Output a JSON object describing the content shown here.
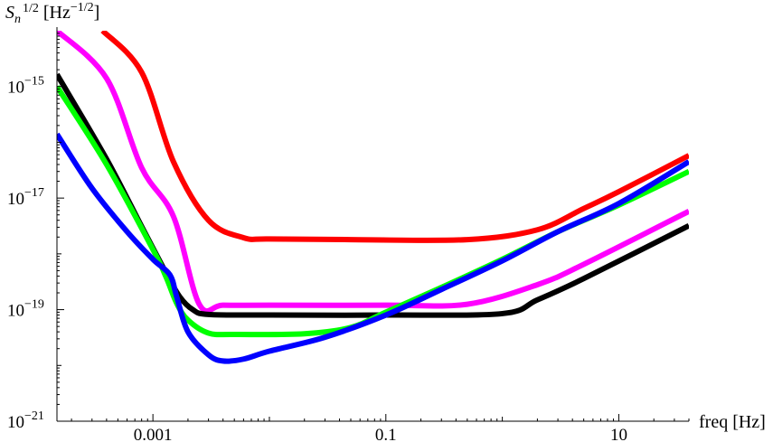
{
  "chart_data": {
    "type": "line",
    "x_scale": "log",
    "y_scale": "log",
    "xlim": [
      0.00015,
      40
    ],
    "ylim": [
      1e-21,
      1e-14
    ],
    "xlabel": "freq [Hz]",
    "ylabel": {
      "base": "S",
      "sub": "n",
      "sup": "1/2",
      "unit": "[Hz",
      "unit_sup": "−1/2",
      "unit_close": "]"
    },
    "x_ticks": [
      {
        "value": 0.001,
        "label": "0.001"
      },
      {
        "value": 0.1,
        "label": "0.1"
      },
      {
        "value": 10,
        "label": "10"
      }
    ],
    "y_ticks": [
      {
        "value": 1e-21,
        "base": "10",
        "exp": "−21"
      },
      {
        "value": 1e-19,
        "base": "10",
        "exp": "−19"
      },
      {
        "value": 1e-17,
        "base": "10",
        "exp": "−17"
      },
      {
        "value": 1e-15,
        "base": "10",
        "exp": "−15"
      }
    ],
    "grid": false,
    "series": [
      {
        "color": "#ff0000",
        "points": [
          [
            0.00037,
            1e-14
          ],
          [
            0.0008,
            1.8e-15
          ],
          [
            0.0015,
            4.5e-17
          ],
          [
            0.003,
            4e-18
          ],
          [
            0.006,
            1.95e-18
          ],
          [
            0.01,
            1.85e-18
          ],
          [
            0.05,
            1.8e-18
          ],
          [
            0.5,
            1.8e-18
          ],
          [
            2,
            2.7e-18
          ],
          [
            5,
            6.5e-18
          ],
          [
            10,
            1.3e-17
          ],
          [
            40,
            5.8e-17
          ]
        ]
      },
      {
        "color": "#ff00ff",
        "points": [
          [
            0.00015,
            1e-14
          ],
          [
            0.0004,
            1.4e-15
          ],
          [
            0.0008,
            3.5e-17
          ],
          [
            0.0015,
            4.7e-18
          ],
          [
            0.0025,
            1.25e-19
          ],
          [
            0.004,
            1.2e-19
          ],
          [
            0.01,
            1.2e-19
          ],
          [
            0.1,
            1.2e-19
          ],
          [
            0.5,
            1.25e-19
          ],
          [
            2,
            2.8e-19
          ],
          [
            5,
            6.5e-19
          ],
          [
            40,
            5.8e-18
          ]
        ]
      },
      {
        "color": "#000000",
        "points": [
          [
            0.00015,
            1.65e-15
          ],
          [
            0.0004,
            5e-17
          ],
          [
            0.0008,
            3.1e-18
          ],
          [
            0.0013,
            4.5e-19
          ],
          [
            0.0017,
            1.7e-19
          ],
          [
            0.0022,
            1e-19
          ],
          [
            0.003,
            8.2e-20
          ],
          [
            0.01,
            8e-20
          ],
          [
            0.1,
            8e-20
          ],
          [
            1,
            8.5e-20
          ],
          [
            2,
            1.5e-19
          ],
          [
            5,
            3.6e-19
          ],
          [
            40,
            3.2e-18
          ]
        ]
      },
      {
        "color": "#00ff00",
        "points": [
          [
            0.00015,
            1e-15
          ],
          [
            0.0004,
            4e-17
          ],
          [
            0.001,
            1.2e-18
          ],
          [
            0.0013,
            3.8e-19
          ],
          [
            0.0016,
            1.3e-19
          ],
          [
            0.002,
            6.5e-20
          ],
          [
            0.003,
            3.8e-20
          ],
          [
            0.005,
            3.6e-20
          ],
          [
            0.02,
            3.7e-20
          ],
          [
            0.05,
            4.8e-20
          ],
          [
            0.1,
            9e-20
          ],
          [
            0.3,
            2.5e-19
          ],
          [
            1,
            8e-19
          ],
          [
            3,
            2.5e-18
          ],
          [
            10,
            7.5e-18
          ],
          [
            40,
            3e-17
          ]
        ]
      },
      {
        "color": "#0000ff",
        "points": [
          [
            0.00015,
            1.4e-16
          ],
          [
            0.0003,
            1.5e-17
          ],
          [
            0.0006,
            2.5e-18
          ],
          [
            0.001,
            8e-19
          ],
          [
            0.0014,
            4.2e-19
          ],
          [
            0.0016,
            1.7e-19
          ],
          [
            0.002,
            4e-20
          ],
          [
            0.003,
            1.55e-20
          ],
          [
            0.004,
            1.2e-20
          ],
          [
            0.006,
            1.3e-20
          ],
          [
            0.01,
            1.8e-20
          ],
          [
            0.03,
            3.2e-20
          ],
          [
            0.1,
            8e-20
          ],
          [
            0.3,
            2.3e-19
          ],
          [
            1,
            7.5e-19
          ],
          [
            3,
            2.5e-18
          ],
          [
            10,
            8e-18
          ],
          [
            40,
            4.5e-17
          ]
        ]
      }
    ]
  }
}
